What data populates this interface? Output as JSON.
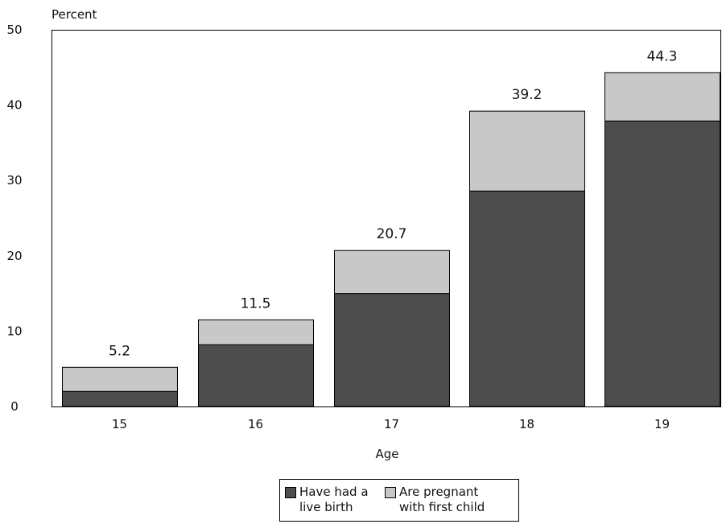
{
  "chart_data": {
    "type": "bar",
    "stacked": true,
    "categories": [
      "15",
      "16",
      "17",
      "18",
      "19"
    ],
    "series": [
      {
        "name": "Have had a live birth",
        "values": [
          2.0,
          8.2,
          15.0,
          28.6,
          37.9
        ],
        "color": "#4d4d4d"
      },
      {
        "name": "Are pregnant with first child",
        "values": [
          3.2,
          3.3,
          5.7,
          10.6,
          6.4
        ],
        "color": "#c8c8c8"
      }
    ],
    "totals": [
      "5.2",
      "11.5",
      "20.7",
      "39.2",
      "44.3"
    ],
    "ylabel": "Percent",
    "xlabel": "Age",
    "ylim": [
      0,
      50
    ],
    "yticks": [
      "0",
      "10",
      "20",
      "30",
      "40",
      "50"
    ],
    "grid": false,
    "legend_position": "bottom-center"
  },
  "legend": {
    "item1": "Have had a\nlive birth",
    "item2": "Are pregnant\nwith first child"
  }
}
